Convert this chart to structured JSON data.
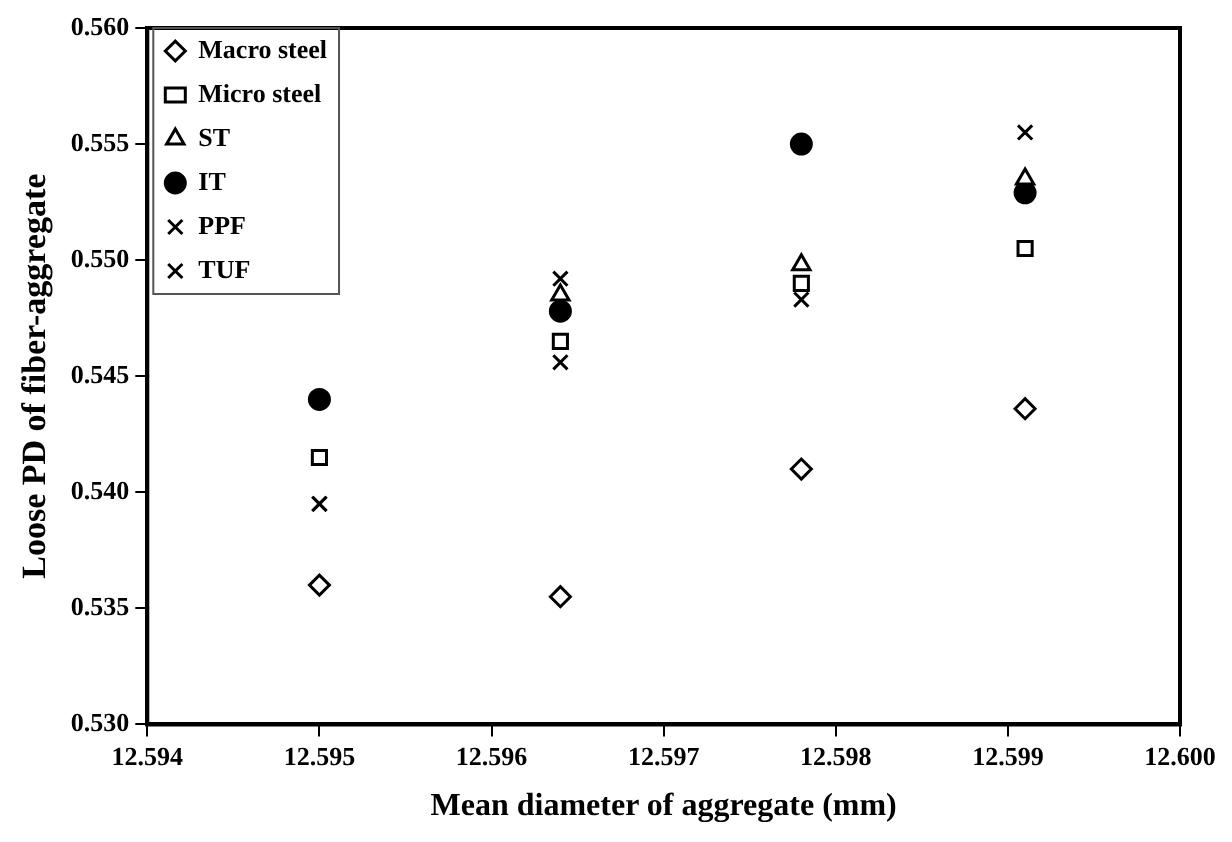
{
  "chart_data": {
    "type": "scatter",
    "xlabel": "Mean diameter of aggregate (mm)",
    "ylabel": "Loose PD of fiber-aggregate",
    "x": [
      12.595,
      12.5964,
      12.5978,
      12.5991
    ],
    "series": [
      {
        "name": "Macro steel",
        "color": "#000000",
        "marker": "diamond",
        "values": [
          0.536,
          0.5355,
          0.541,
          0.5436
        ]
      },
      {
        "name": "Micro steel",
        "color": "#000000",
        "marker": "square",
        "values": [
          0.5415,
          0.5465,
          0.549,
          0.5505
        ]
      },
      {
        "name": "ST",
        "color": "#000000",
        "marker": "triangle",
        "values": [
          null,
          0.5485,
          0.5498,
          0.5535
        ]
      },
      {
        "name": "IT",
        "color": "#000000",
        "marker": "circle",
        "values": [
          0.544,
          0.5478,
          0.555,
          0.5529
        ]
      },
      {
        "name": "PPF",
        "color": "#000000",
        "marker": "cross",
        "values": [
          0.5395,
          0.5492,
          null,
          0.5555
        ]
      },
      {
        "name": "TUF",
        "color": "#000000",
        "marker": "cross",
        "values": [
          0.5395,
          0.5456,
          0.5483,
          null
        ]
      }
    ],
    "xlim": [
      12.594,
      12.6
    ],
    "xticks": [
      {
        "value": 12.594,
        "label": "12.594"
      },
      {
        "value": 12.595,
        "label": "12.595"
      },
      {
        "value": 12.596,
        "label": "12.596"
      },
      {
        "value": 12.597,
        "label": "12.597"
      },
      {
        "value": 12.598,
        "label": "12.598"
      },
      {
        "value": 12.599,
        "label": "12.599"
      },
      {
        "value": 12.6,
        "label": "12.600"
      }
    ],
    "ylim": [
      0.53,
      0.56
    ],
    "yticks": [
      {
        "value": 0.53,
        "label": "0.530"
      },
      {
        "value": 0.535,
        "label": "0.535"
      },
      {
        "value": 0.54,
        "label": "0.540"
      },
      {
        "value": 0.545,
        "label": "0.545"
      },
      {
        "value": 0.55,
        "label": "0.550"
      },
      {
        "value": 0.555,
        "label": "0.555"
      },
      {
        "value": 0.56,
        "label": "0.560"
      }
    ],
    "grid": false,
    "legend": "top left"
  }
}
